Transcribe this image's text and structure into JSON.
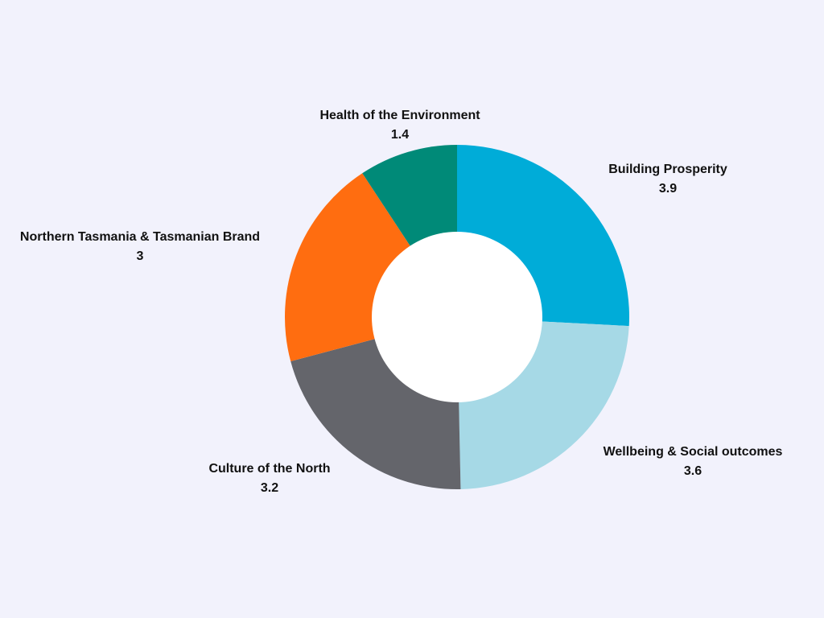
{
  "chart_data": {
    "type": "pie",
    "variant": "donut",
    "start": "12 o'clock",
    "direction": "clockwise",
    "grid": false,
    "legend": "none (labels beside slices)",
    "slices": [
      {
        "label": "Building Prosperity",
        "value": 3.9,
        "value_text": "3.9",
        "color": "#00acd8"
      },
      {
        "label": "Wellbeing & Social outcomes",
        "value": 3.6,
        "value_text": "3.6",
        "color": "#a6d9e6"
      },
      {
        "label": "Culture of the North",
        "value": 3.2,
        "value_text": "3.2",
        "color": "#64656b"
      },
      {
        "label": "Northern Tasmania & Tasmanian Brand",
        "value": 3,
        "value_text": "3",
        "color": "#ff6d10"
      },
      {
        "label": "Health of the Environment",
        "value": 1.4,
        "value_text": "1.4",
        "color": "#008a78"
      }
    ]
  },
  "colors": {
    "background": "#f2f2fc",
    "label_text": "#111111",
    "hole": "#ffffff"
  }
}
